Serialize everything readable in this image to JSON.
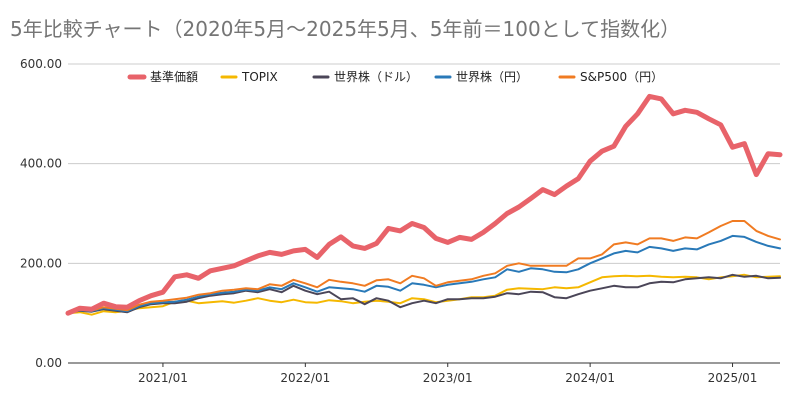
{
  "chart_data": {
    "type": "line",
    "title": "5年比較チャート（2020年5月〜2025年5月、5年前＝100として指数化）",
    "xlabel": "",
    "ylabel": "",
    "ylim": [
      0,
      600
    ],
    "y_ticks": [
      "0.00",
      "200.00",
      "400.00",
      "600.00"
    ],
    "x_ticks": [
      "2021/01",
      "2022/01",
      "2023/01",
      "2024/01",
      "2025/01"
    ],
    "grid": true,
    "legend_position": "top",
    "x": [
      "2020/05",
      "2020/06",
      "2020/07",
      "2020/08",
      "2020/09",
      "2020/10",
      "2020/11",
      "2020/12",
      "2021/01",
      "2021/02",
      "2021/03",
      "2021/04",
      "2021/05",
      "2021/06",
      "2021/07",
      "2021/08",
      "2021/09",
      "2021/10",
      "2021/11",
      "2021/12",
      "2022/01",
      "2022/02",
      "2022/03",
      "2022/04",
      "2022/05",
      "2022/06",
      "2022/07",
      "2022/08",
      "2022/09",
      "2022/10",
      "2022/11",
      "2022/12",
      "2023/01",
      "2023/02",
      "2023/03",
      "2023/04",
      "2023/05",
      "2023/06",
      "2023/07",
      "2023/08",
      "2023/09",
      "2023/10",
      "2023/11",
      "2023/12",
      "2024/01",
      "2024/02",
      "2024/03",
      "2024/04",
      "2024/05",
      "2024/06",
      "2024/07",
      "2024/08",
      "2024/09",
      "2024/10",
      "2024/11",
      "2024/12",
      "2025/01",
      "2025/02",
      "2025/03",
      "2025/04",
      "2025/05"
    ],
    "series": [
      {
        "name": "基準価額",
        "color": "#e8636a",
        "width": 5,
        "values": [
          100,
          110,
          108,
          120,
          113,
          112,
          125,
          135,
          142,
          173,
          177,
          170,
          185,
          190,
          195,
          205,
          215,
          222,
          218,
          225,
          228,
          212,
          238,
          253,
          235,
          230,
          240,
          270,
          265,
          280,
          272,
          250,
          242,
          252,
          248,
          262,
          280,
          300,
          313,
          330,
          348,
          338,
          355,
          370,
          405,
          425,
          435,
          475,
          500,
          535,
          530,
          500,
          507,
          503,
          490,
          478,
          433,
          440,
          378,
          420,
          418
        ]
      },
      {
        "name": "TOPIX",
        "color": "#f5b800",
        "width": 2,
        "values": [
          100,
          102,
          97,
          104,
          102,
          105,
          110,
          112,
          114,
          123,
          125,
          120,
          122,
          124,
          121,
          125,
          130,
          125,
          122,
          127,
          122,
          121,
          126,
          124,
          120,
          123,
          125,
          123,
          120,
          130,
          128,
          122,
          125,
          128,
          132,
          132,
          135,
          147,
          150,
          149,
          148,
          152,
          150,
          152,
          162,
          172,
          174,
          175,
          174,
          175,
          173,
          172,
          173,
          172,
          168,
          172,
          174,
          177,
          172,
          173,
          174
        ]
      },
      {
        "name": "世界株（ドル）",
        "color": "#4b4658",
        "width": 2,
        "values": [
          100,
          105,
          103,
          108,
          105,
          102,
          112,
          118,
          120,
          120,
          123,
          130,
          135,
          138,
          140,
          145,
          142,
          148,
          142,
          155,
          145,
          138,
          143,
          128,
          130,
          118,
          130,
          125,
          112,
          120,
          125,
          120,
          128,
          128,
          130,
          130,
          133,
          140,
          138,
          143,
          142,
          132,
          130,
          138,
          145,
          150,
          155,
          152,
          152,
          160,
          163,
          162,
          168,
          170,
          172,
          170,
          177,
          173,
          175,
          170,
          171
        ]
      },
      {
        "name": "世界株（円）",
        "color": "#2979b8",
        "width": 2,
        "values": [
          100,
          106,
          104,
          110,
          107,
          104,
          114,
          120,
          122,
          123,
          127,
          133,
          138,
          141,
          143,
          147,
          145,
          152,
          148,
          160,
          152,
          143,
          152,
          150,
          148,
          143,
          155,
          153,
          145,
          160,
          157,
          152,
          157,
          160,
          163,
          168,
          172,
          188,
          183,
          190,
          188,
          183,
          182,
          188,
          200,
          210,
          220,
          225,
          222,
          233,
          230,
          225,
          230,
          228,
          238,
          245,
          255,
          253,
          243,
          235,
          230
        ]
      },
      {
        "name": "S&P500（円）",
        "color": "#f07b22",
        "width": 2,
        "values": [
          100,
          107,
          105,
          112,
          109,
          106,
          117,
          123,
          125,
          128,
          131,
          137,
          140,
          145,
          147,
          150,
          148,
          158,
          155,
          167,
          160,
          152,
          167,
          163,
          160,
          155,
          166,
          168,
          160,
          175,
          170,
          155,
          162,
          165,
          168,
          175,
          180,
          195,
          200,
          195,
          195,
          195,
          195,
          210,
          210,
          218,
          238,
          242,
          238,
          250,
          250,
          245,
          252,
          250,
          262,
          275,
          285,
          285,
          265,
          255,
          248
        ]
      }
    ]
  }
}
